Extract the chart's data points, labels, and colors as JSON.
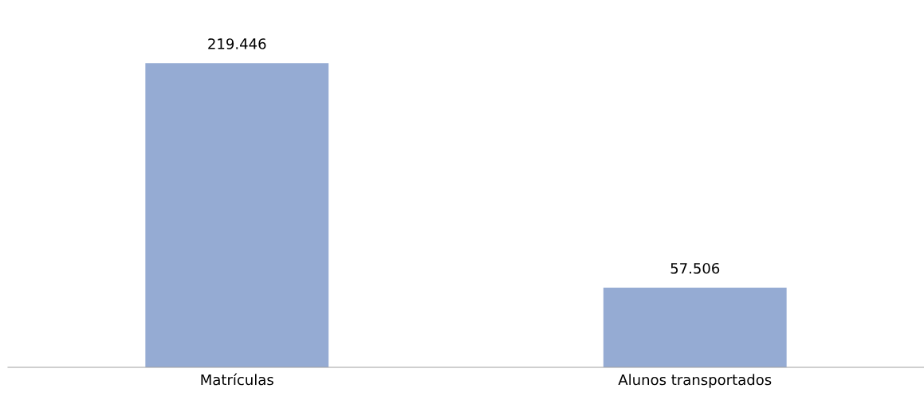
{
  "chart_data": {
    "type": "bar",
    "categories": [
      "Matrículas",
      "Alunos transportados"
    ],
    "values": [
      219446,
      57506
    ],
    "value_labels": [
      "219.446",
      "57.506"
    ],
    "color": "#95abd3",
    "grid": false,
    "legend": false
  }
}
